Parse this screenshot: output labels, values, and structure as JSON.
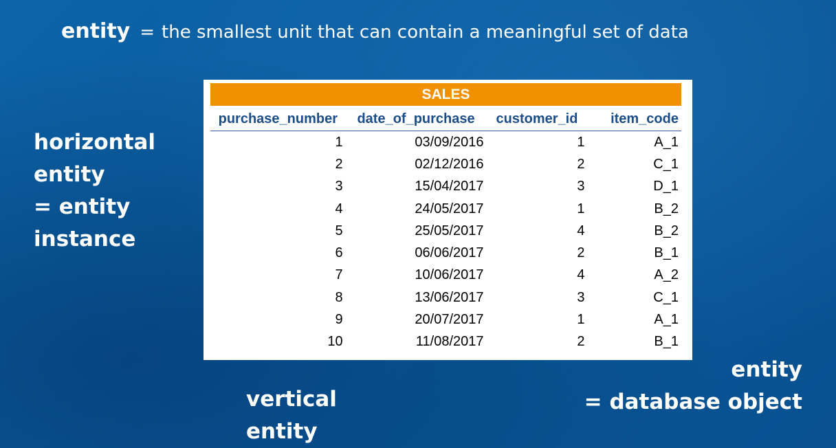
{
  "definition": {
    "term": "entity",
    "equals": "=",
    "text": "the smallest unit that can contain a meaningful set of data"
  },
  "side_labels": {
    "horizontal": [
      "horizontal",
      "entity",
      "= entity",
      "instance"
    ],
    "vertical": [
      "vertical",
      "entity"
    ],
    "object": [
      "entity",
      "= database object"
    ]
  },
  "table": {
    "title": "SALES",
    "columns": [
      "purchase_number",
      "date_of_purchase",
      "customer_id",
      "item_code"
    ],
    "rows": [
      [
        "1",
        "03/09/2016",
        "1",
        "A_1"
      ],
      [
        "2",
        "02/12/2016",
        "2",
        "C_1"
      ],
      [
        "3",
        "15/04/2017",
        "3",
        "D_1"
      ],
      [
        "4",
        "24/05/2017",
        "1",
        "B_2"
      ],
      [
        "5",
        "25/05/2017",
        "4",
        "B_2"
      ],
      [
        "6",
        "06/06/2017",
        "2",
        "B_1"
      ],
      [
        "7",
        "10/06/2017",
        "4",
        "A_2"
      ],
      [
        "8",
        "13/06/2017",
        "3",
        "C_1"
      ],
      [
        "9",
        "20/07/2017",
        "1",
        "A_1"
      ],
      [
        "10",
        "11/08/2017",
        "2",
        "B_1"
      ]
    ]
  },
  "colors": {
    "background": "#0a5a9c",
    "header_accent": "#f29100",
    "column_header_text": "#1b4d8a"
  }
}
